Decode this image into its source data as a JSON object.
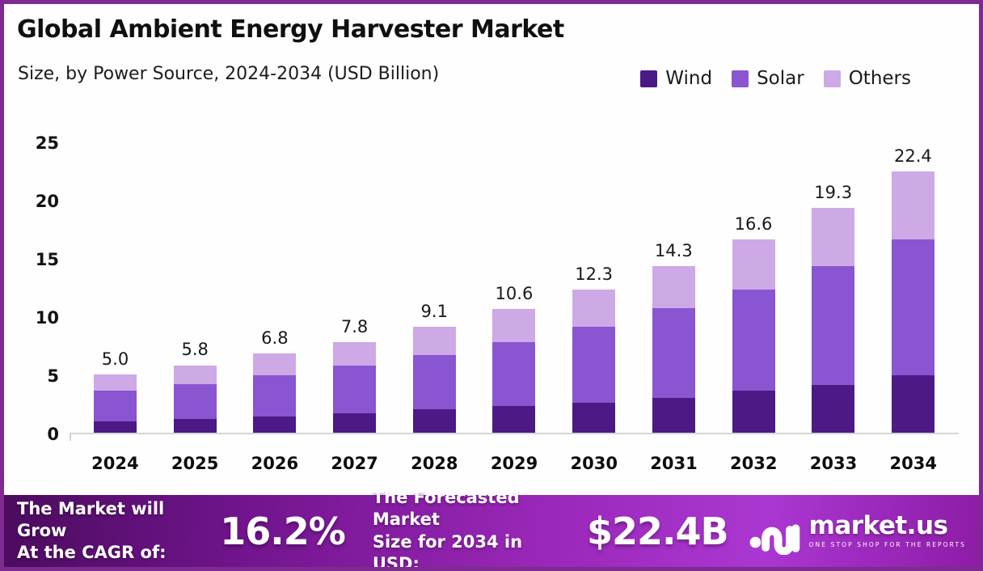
{
  "header": {
    "title": "Global Ambient Energy Harvester Market",
    "subtitle": "Size, by Power Source, 2024-2034 (USD Billion)"
  },
  "chart_data": {
    "type": "bar",
    "stacked": true,
    "categories": [
      "2024",
      "2025",
      "2026",
      "2027",
      "2028",
      "2029",
      "2030",
      "2031",
      "2032",
      "2033",
      "2034"
    ],
    "series": [
      {
        "name": "Wind",
        "color": "#4B1A86",
        "values": [
          1.0,
          1.2,
          1.4,
          1.7,
          2.0,
          2.3,
          2.6,
          3.0,
          3.6,
          4.1,
          4.9
        ]
      },
      {
        "name": "Solar",
        "color": "#8A55D1",
        "values": [
          2.6,
          3.0,
          3.5,
          4.1,
          4.7,
          5.5,
          6.5,
          7.7,
          8.7,
          10.2,
          11.7
        ]
      },
      {
        "name": "Others",
        "color": "#CDA9E6",
        "values": [
          1.4,
          1.6,
          1.9,
          2.0,
          2.4,
          2.8,
          3.2,
          3.6,
          4.3,
          5.0,
          5.8
        ]
      }
    ],
    "totals": [
      5.0,
      5.8,
      6.8,
      7.8,
      9.1,
      10.6,
      12.3,
      14.3,
      16.6,
      19.3,
      22.4
    ],
    "title": "Global Ambient Energy Harvester Market",
    "xlabel": "",
    "ylabel": "",
    "ylim": [
      0,
      25
    ],
    "yticks": [
      0,
      5,
      10,
      15,
      20,
      25
    ],
    "grid": false,
    "legend_position": "top-right"
  },
  "footer": {
    "cagr_label_line1": "The Market will Grow",
    "cagr_label_line2": "At the CAGR of:",
    "cagr_value": "16.2%",
    "forecast_label_line1": "The Forecasted Market",
    "forecast_label_line2": "Size for 2034 in USD:",
    "forecast_value": "$22.4B",
    "brand": {
      "name": "market.us",
      "tagline": "ONE STOP SHOP FOR THE REPORTS"
    }
  },
  "colors": {
    "border": "#7d2b8e",
    "wind": "#4B1A86",
    "solar": "#8A55D1",
    "others": "#CDA9E6",
    "footer_gradient_start": "#4b0c5e",
    "footer_gradient_end": "#8d1ca6"
  }
}
